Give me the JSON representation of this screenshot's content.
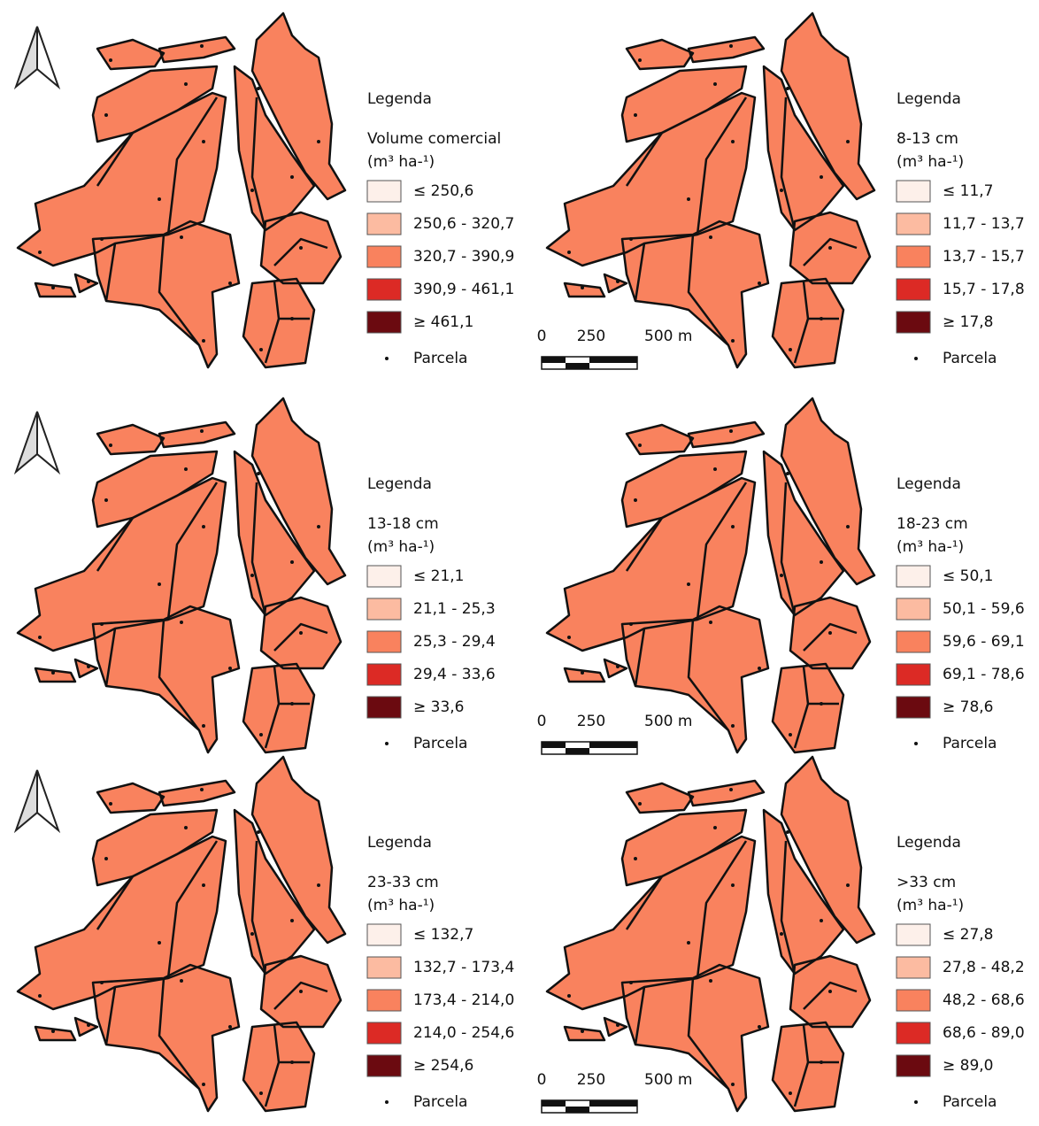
{
  "class_colors": [
    "#fdf0ea",
    "#fcbba1",
    "#f9825e",
    "#dc2a25",
    "#6b0a10"
  ],
  "scale_bar": {
    "labels": [
      "0",
      "250",
      "500 m"
    ]
  },
  "panels": [
    {
      "legend_title": "Legenda",
      "variable": "Volume comercial",
      "unit": "(m³ ha-¹)",
      "classes": [
        "≤ 250,6",
        "250,6 - 320,7",
        "320,7 - 390,9",
        "390,9 - 461,1",
        "≥ 461,1"
      ],
      "point": "Parcela"
    },
    {
      "legend_title": "Legenda",
      "variable": "8-13 cm",
      "unit": "(m³ ha-¹)",
      "classes": [
        "≤ 11,7",
        "11,7 - 13,7",
        "13,7 - 15,7",
        "15,7 - 17,8",
        "≥ 17,8"
      ],
      "point": "Parcela"
    },
    {
      "legend_title": "Legenda",
      "variable": "13-18 cm",
      "unit": "(m³ ha-¹)",
      "classes": [
        "≤ 21,1",
        "21,1 - 25,3",
        "25,3 - 29,4",
        "29,4 - 33,6",
        "≥ 33,6"
      ],
      "point": "Parcela"
    },
    {
      "legend_title": "Legenda",
      "variable": "18-23 cm",
      "unit": "(m³ ha-¹)",
      "classes": [
        "≤ 50,1",
        "50,1 - 59,6",
        "59,6 - 69,1",
        "69,1 - 78,6",
        "≥ 78,6"
      ],
      "point": "Parcela"
    },
    {
      "legend_title": "Legenda",
      "variable": "23-33 cm",
      "unit": "(m³ ha-¹)",
      "classes": [
        "≤ 132,7",
        "132,7 - 173,4",
        "173,4 - 214,0",
        "214,0 - 254,6",
        "≥ 254,6"
      ],
      "point": "Parcela"
    },
    {
      "legend_title": "Legenda",
      "variable": ">33 cm",
      "unit": "(m³ ha-¹)",
      "classes": [
        "≤ 27,8",
        "27,8 - 48,2",
        "48,2 - 68,6",
        "68,6 - 89,0",
        "≥ 89,0"
      ],
      "point": "Parcela"
    }
  ]
}
